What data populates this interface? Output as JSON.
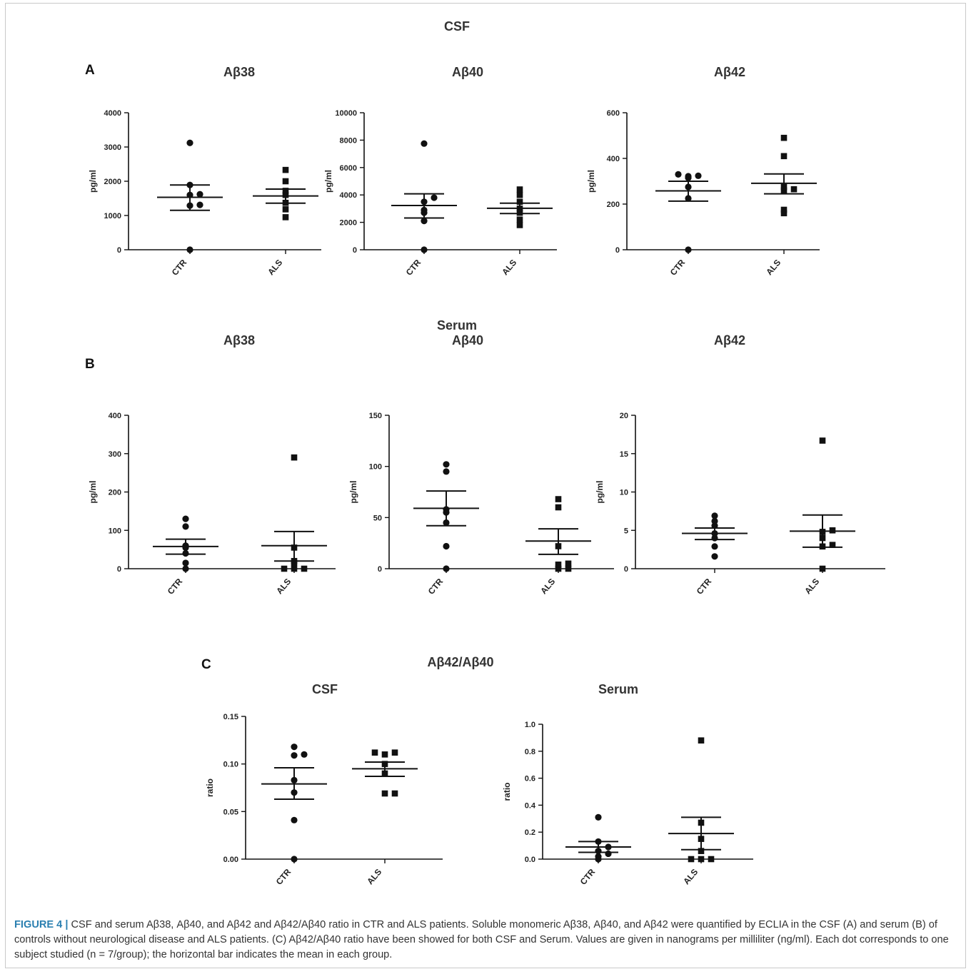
{
  "sections": {
    "csf_title": "CSF",
    "serum_title": "Serum",
    "ratio_title": "Aβ42/Aβ40"
  },
  "panels": {
    "a": "A",
    "b": "B",
    "c": "C"
  },
  "caption": {
    "label": "FIGURE 4 |",
    "text": " CSF and serum Aβ38, Aβ40, and Aβ42 and Aβ42/Aβ40 ratio in CTR and ALS patients. Soluble monomeric Aβ38, Aβ40, and Aβ42 were quantified by ECLIA in the CSF (A) and serum (B) of controls without neurological disease and ALS patients. (C) Aβ42/Aβ40 ratio have been showed for both CSF and Serum. Values are given in nanograms per milliliter (ng/ml). Each dot corresponds to one subject studied (n = 7/group); the horizontal bar indicates the mean in each group."
  },
  "colors": {
    "marker": "#111111",
    "axis": "#111111"
  },
  "chart_data": [
    {
      "type": "scatter",
      "panel": "A",
      "title": "Aβ38",
      "ylabel": "pg/ml",
      "ylim": [
        0,
        4000
      ],
      "yticks": [
        0,
        1000,
        2000,
        3000,
        4000
      ],
      "categories": [
        "CTR",
        "ALS"
      ],
      "series": [
        {
          "category": "CTR",
          "marker": "circle",
          "values": [
            0,
            1290,
            1310,
            1600,
            1620,
            1890,
            3120
          ],
          "mean": 1530,
          "sem_low": 1150,
          "sem_high": 1890
        },
        {
          "category": "ALS",
          "marker": "square",
          "values": [
            950,
            1180,
            1370,
            1600,
            1720,
            2000,
            2330
          ],
          "mean": 1570,
          "sem_low": 1360,
          "sem_high": 1770
        }
      ]
    },
    {
      "type": "scatter",
      "panel": "A",
      "title": "Aβ40",
      "ylabel": "pg/ml",
      "ylim": [
        0,
        10000
      ],
      "yticks": [
        0,
        2000,
        4000,
        6000,
        8000,
        10000
      ],
      "categories": [
        "CTR",
        "ALS"
      ],
      "series": [
        {
          "category": "CTR",
          "marker": "circle",
          "values": [
            0,
            2100,
            2700,
            2900,
            3500,
            3800,
            7750
          ],
          "mean": 3230,
          "sem_low": 2320,
          "sem_high": 4080
        },
        {
          "category": "ALS",
          "marker": "square",
          "values": [
            1800,
            2200,
            2700,
            3000,
            3500,
            4000,
            4400
          ],
          "mean": 3030,
          "sem_low": 2640,
          "sem_high": 3400
        }
      ]
    },
    {
      "type": "scatter",
      "panel": "A",
      "title": "Aβ42",
      "ylabel": "pg/ml",
      "ylim": [
        0,
        600
      ],
      "yticks": [
        0,
        200,
        400,
        600
      ],
      "categories": [
        "CTR",
        "ALS"
      ],
      "series": [
        {
          "category": "CTR",
          "marker": "circle",
          "values": [
            0,
            225,
            275,
            315,
            322,
            324,
            330
          ],
          "mean": 258,
          "sem_low": 213,
          "sem_high": 300
        },
        {
          "category": "ALS",
          "marker": "square",
          "values": [
            160,
            175,
            260,
            265,
            275,
            410,
            490
          ],
          "mean": 291,
          "sem_low": 245,
          "sem_high": 332
        }
      ]
    },
    {
      "type": "scatter",
      "panel": "B",
      "title": "Aβ38",
      "ylabel": "pg/ml",
      "ylim": [
        0,
        400
      ],
      "yticks": [
        0,
        100,
        200,
        300,
        400
      ],
      "categories": [
        "CTR",
        "ALS"
      ],
      "series": [
        {
          "category": "CTR",
          "marker": "circle",
          "values": [
            0,
            15,
            40,
            55,
            60,
            110,
            130
          ],
          "mean": 58,
          "sem_low": 38,
          "sem_high": 77
        },
        {
          "category": "ALS",
          "marker": "square",
          "values": [
            0,
            0,
            0,
            15,
            20,
            55,
            290
          ],
          "mean": 60,
          "sem_low": 20,
          "sem_high": 97
        }
      ]
    },
    {
      "type": "scatter",
      "panel": "B",
      "title": "Aβ40",
      "ylabel": "pg/ml",
      "ylim": [
        0,
        150
      ],
      "yticks": [
        0,
        50,
        100,
        150
      ],
      "categories": [
        "CTR",
        "ALS"
      ],
      "series": [
        {
          "category": "CTR",
          "marker": "circle",
          "values": [
            0,
            22,
            45,
            55,
            58,
            95,
            102
          ],
          "mean": 59,
          "sem_low": 42,
          "sem_high": 76
        },
        {
          "category": "ALS",
          "marker": "square",
          "values": [
            0,
            0,
            4,
            5,
            22,
            60,
            68
          ],
          "mean": 27,
          "sem_low": 14,
          "sem_high": 39
        }
      ]
    },
    {
      "type": "scatter",
      "panel": "B",
      "title": "Aβ42",
      "ylabel": "pg/ml",
      "ylim": [
        0,
        20
      ],
      "yticks": [
        0,
        5,
        10,
        15,
        20
      ],
      "categories": [
        "CTR",
        "ALS"
      ],
      "series": [
        {
          "category": "CTR",
          "marker": "circle",
          "values": [
            1.6,
            2.9,
            4.0,
            4.6,
            5.6,
            6.2,
            6.9
          ],
          "mean": 4.6,
          "sem_low": 3.8,
          "sem_high": 5.3
        },
        {
          "category": "ALS",
          "marker": "square",
          "values": [
            0,
            2.9,
            3.1,
            4.0,
            4.8,
            5.0,
            16.7
          ],
          "mean": 4.9,
          "sem_low": 2.8,
          "sem_high": 7.0
        }
      ]
    },
    {
      "type": "scatter",
      "panel": "C",
      "title": "CSF",
      "ylabel": "ratio",
      "ylim": [
        0,
        0.15
      ],
      "yticks": [
        0.0,
        0.05,
        0.1,
        0.15
      ],
      "ytick_decimals": 2,
      "categories": [
        "CTR",
        "ALS"
      ],
      "series": [
        {
          "category": "CTR",
          "marker": "circle",
          "values": [
            0,
            0.041,
            0.07,
            0.083,
            0.11,
            0.109,
            0.118
          ],
          "mean": 0.079,
          "sem_low": 0.063,
          "sem_high": 0.096
        },
        {
          "category": "ALS",
          "marker": "square",
          "values": [
            0.069,
            0.069,
            0.09,
            0.1,
            0.11,
            0.112,
            0.112
          ],
          "mean": 0.095,
          "sem_low": 0.087,
          "sem_high": 0.102
        }
      ]
    },
    {
      "type": "scatter",
      "panel": "C",
      "title": "Serum",
      "ylabel": "ratio",
      "ylim": [
        0,
        1.0
      ],
      "yticks": [
        0.0,
        0.2,
        0.4,
        0.6,
        0.8,
        1.0
      ],
      "ytick_decimals": 1,
      "categories": [
        "CTR",
        "ALS"
      ],
      "series": [
        {
          "category": "CTR",
          "marker": "circle",
          "values": [
            0,
            0.02,
            0.04,
            0.06,
            0.09,
            0.13,
            0.31
          ],
          "mean": 0.09,
          "sem_low": 0.05,
          "sem_high": 0.13
        },
        {
          "category": "ALS",
          "marker": "square",
          "values": [
            0,
            0,
            0,
            0.06,
            0.15,
            0.27,
            0.88
          ],
          "mean": 0.19,
          "sem_low": 0.07,
          "sem_high": 0.31
        }
      ]
    }
  ]
}
